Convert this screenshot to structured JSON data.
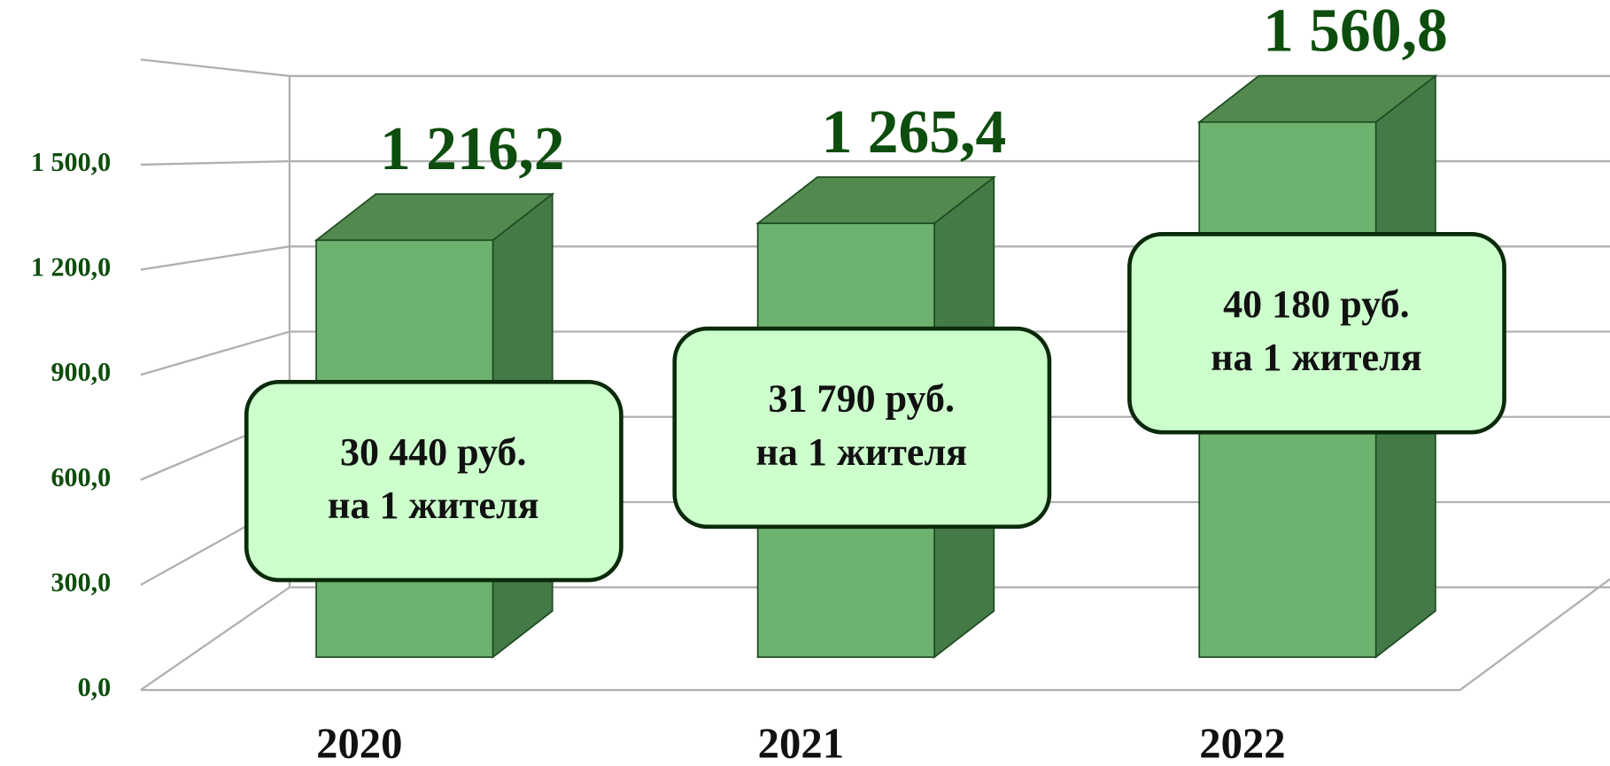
{
  "chart_data": {
    "type": "bar3d",
    "categories": [
      "2020",
      "2021",
      "2022"
    ],
    "values": [
      1216.2,
      1265.4,
      1560.8
    ],
    "value_labels": [
      "1 216,2",
      "1 265,4",
      "1 560,8"
    ],
    "color": "#6db36f",
    "ylim": [
      0,
      1800
    ],
    "yticks": [
      {
        "value": 0,
        "label": "0,0"
      },
      {
        "value": 300,
        "label": "300,0"
      },
      {
        "value": 600,
        "label": "600,0"
      },
      {
        "value": 900,
        "label": "900,0"
      },
      {
        "value": 1200,
        "label": "1 200,0"
      },
      {
        "value": 1500,
        "label": "1 500,0"
      }
    ],
    "grid": true,
    "annotations": [
      {
        "lines": [
          "30 440 руб.",
          "на 1 жителя"
        ]
      },
      {
        "lines": [
          "31 790 руб.",
          "на 1 жителя"
        ]
      },
      {
        "lines": [
          "40 180 руб.",
          "на 1 жителя"
        ]
      }
    ]
  }
}
